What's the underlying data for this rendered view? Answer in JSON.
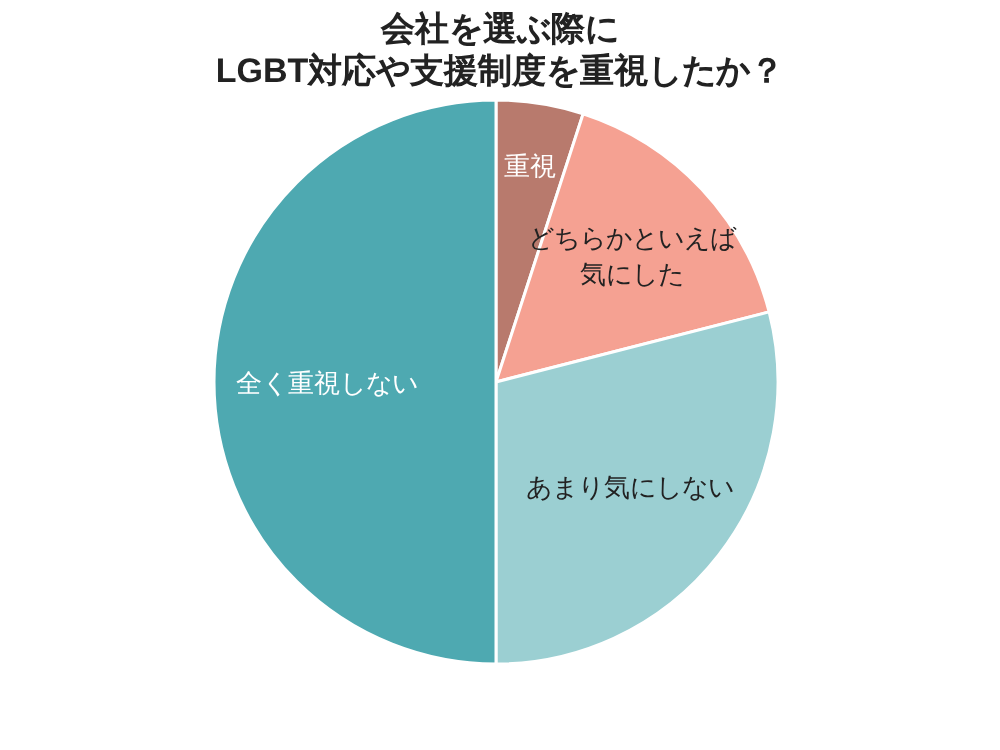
{
  "chart_data": {
    "type": "pie",
    "title": "会社を選ぶ際に\nLGBT対応や支援制度を重視したか？",
    "categories": [
      "重視",
      "どちらかといえば気にした",
      "あまり気にしない",
      "全く重視しない"
    ],
    "values": [
      5,
      16,
      29,
      50
    ],
    "colors": [
      "#b87a6d",
      "#f5a192",
      "#9bcfd2",
      "#4ea9b1"
    ],
    "legend": false
  }
}
